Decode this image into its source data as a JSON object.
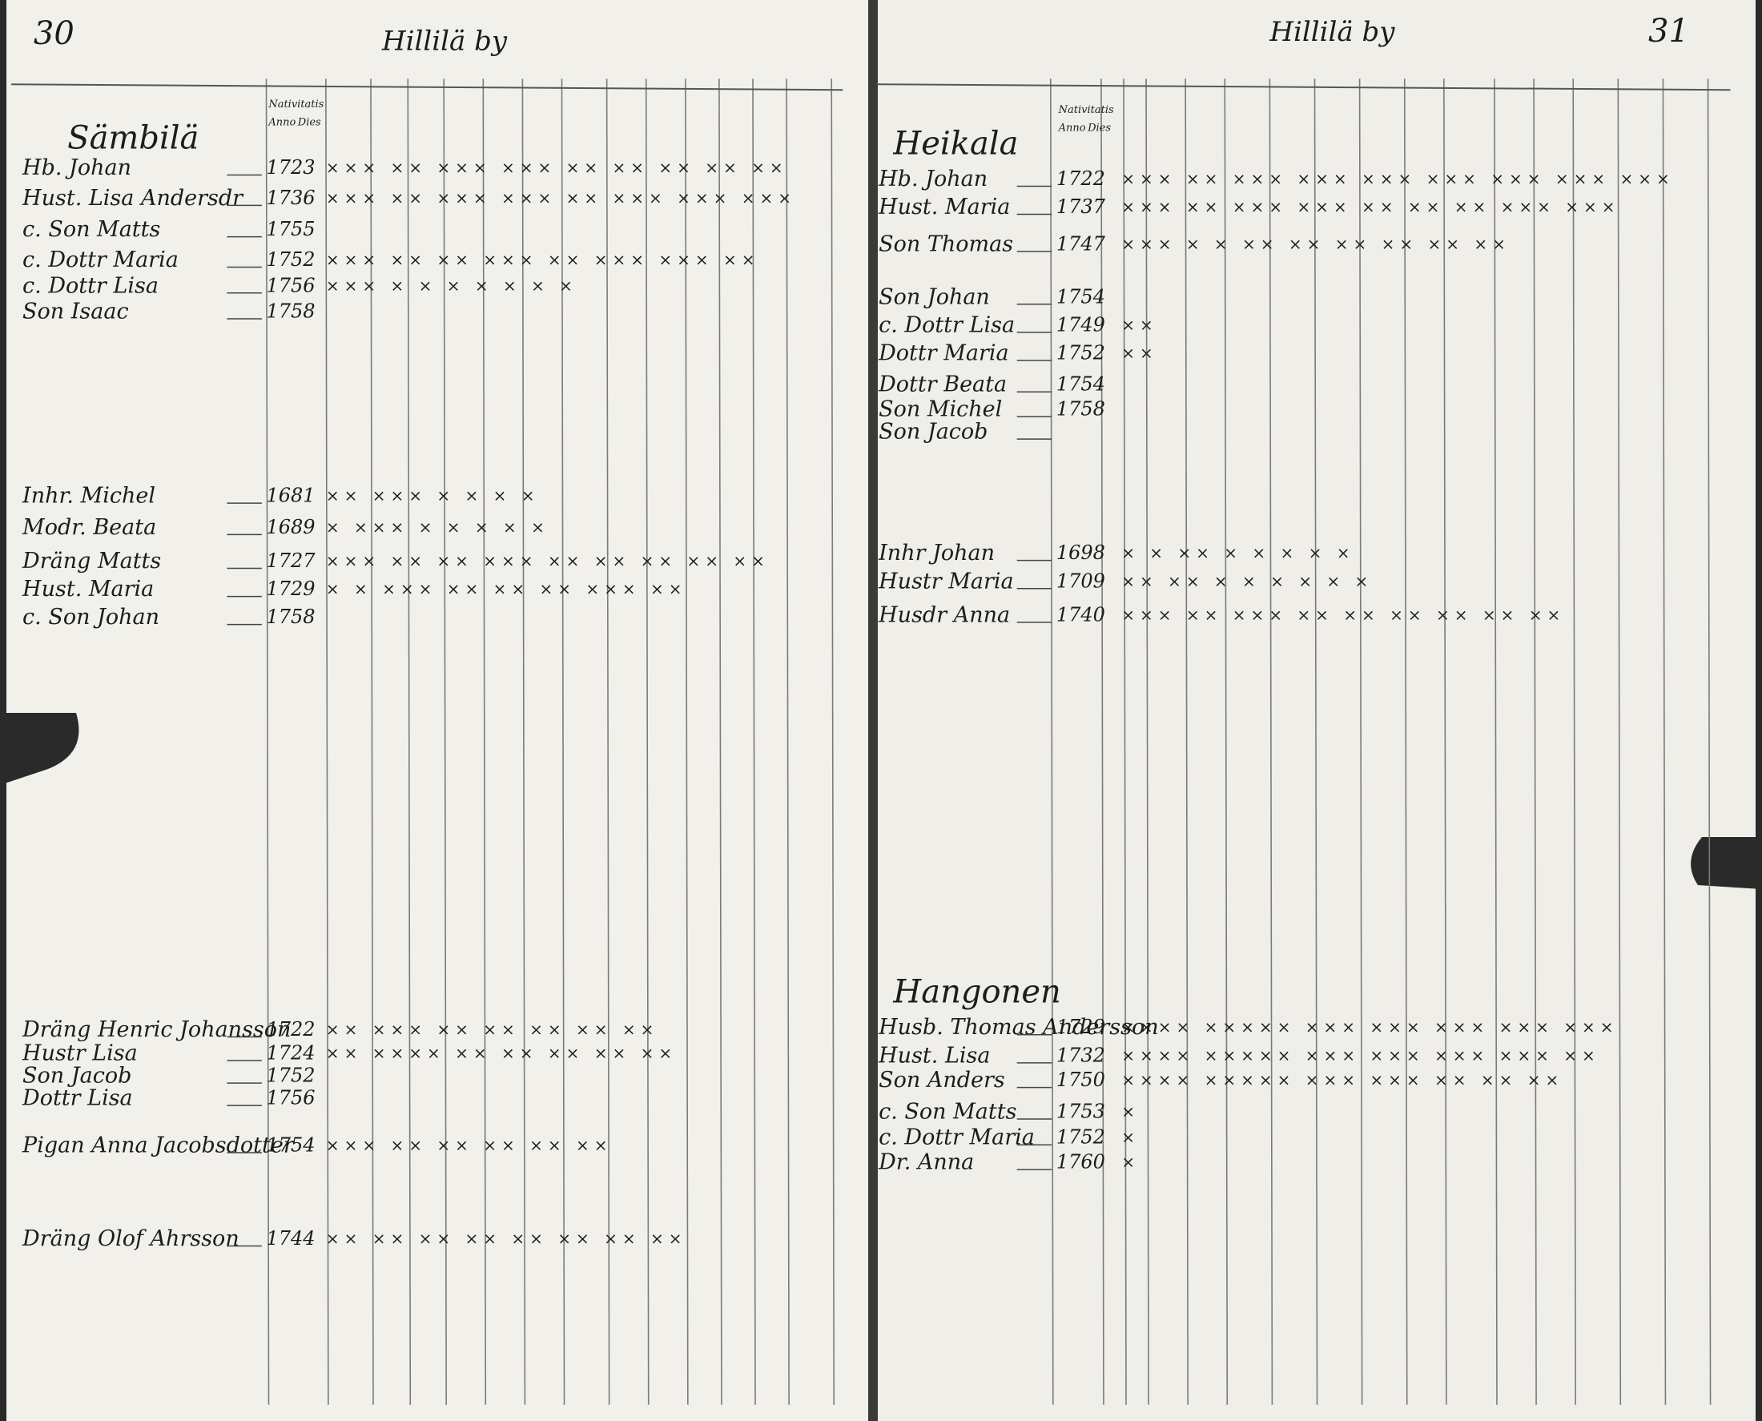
{
  "left_page": {
    "page_number": "30",
    "village": "Hillilä by",
    "column_headers": [
      "Nativitatis",
      "Anno",
      "Dies"
    ],
    "sections": [
      {
        "title": "Sämbilä",
        "rows": [
          {
            "name": "Hb. Johan",
            "year": "1723",
            "marks": "××× ×× ××× ××× ×× ×× ×× ×× ××"
          },
          {
            "name": "Hust. Lisa Andersdr",
            "year": "1736",
            "marks": "××× ×× ××× ××× ×× ××× ××× ×××"
          },
          {
            "name": "c. Son Matts",
            "year": "1755"
          },
          {
            "name": "c. Dottr Maria",
            "year": "1752",
            "marks": "××× ×× ×× ××× ×× ××× ××× ××"
          },
          {
            "name": "c. Dottr Lisa",
            "year": "1756",
            "marks": "××× × × × × × × ×"
          },
          {
            "name": "Son Isaac",
            "year": "1758"
          }
        ]
      },
      {
        "rows": [
          {
            "name": "Inhr. Michel",
            "year": "1681",
            "marks": "×× ××× × × × ×"
          },
          {
            "name": "Modr. Beata",
            "year": "1689",
            "marks": "× ××× × × × × ×"
          },
          {
            "name": "Dräng Matts",
            "year": "1727",
            "marks": "××× ×× ×× ××× ×× ×× ×× ×× ××"
          },
          {
            "name": "Hust. Maria",
            "year": "1729",
            "marks": "× × ××× ×× ×× ×× ××× ××"
          },
          {
            "name": "c. Son Johan",
            "year": "1758"
          }
        ]
      },
      {
        "rows": [
          {
            "name": "Dräng Henric Johansson",
            "year": "1722",
            "marks": "×× ××× ×× ×× ×× ×× ××"
          },
          {
            "name": "Hustr Lisa",
            "year": "1724",
            "marks": "×× ×××× ×× ×× ×× ×× ××"
          },
          {
            "name": "Son Jacob",
            "year": "1752"
          },
          {
            "name": "Dottr Lisa",
            "year": "1756"
          },
          {
            "name": "Pigan Anna Jacobsdotter",
            "year": "1754",
            "marks": "××× ×× ×× ×× ×× ××"
          },
          {
            "name": "Dräng Olof Ahrsson",
            "year": "1744",
            "marks": "×× ×× ×× ×× ×× ×× ×× ××"
          }
        ]
      }
    ]
  },
  "right_page": {
    "page_number": "31",
    "village": "Hillilä by",
    "column_headers": [
      "Nativitatis",
      "Anno",
      "Dies"
    ],
    "sections": [
      {
        "title": "Heikala",
        "rows": [
          {
            "name": "Hb. Johan",
            "year": "1722",
            "marks": "××× ×× ××× ××× ××× ××× ××× ××× ×××"
          },
          {
            "name": "Hust. Maria",
            "year": "1737",
            "marks": "××× ×× ××× ××× ×× ×× ×× ××× ×××"
          },
          {
            "name": "Son Thomas",
            "year": "1747",
            "marks": "××× × × ×× ×× ×× ×× ×× ××"
          },
          {
            "name": "Son Johan",
            "year": "1754"
          },
          {
            "name": "c. Dottr Lisa",
            "year": "1749",
            "marks": "××"
          },
          {
            "name": "Dottr Maria",
            "year": "1752",
            "marks": "××"
          },
          {
            "name": "Dottr Beata",
            "year": "1754"
          },
          {
            "name": "Son Michel",
            "year": "1758"
          },
          {
            "name": "Son Jacob"
          }
        ]
      },
      {
        "rows": [
          {
            "name": "Inhr Johan",
            "year": "1698",
            "marks": "× × ×× × × × × ×"
          },
          {
            "name": "Hustr Maria",
            "year": "1709",
            "marks": "×× ×× × × × × × ×"
          },
          {
            "name": "Husdr Anna",
            "year": "1740",
            "marks": "××× ×× ××× ×× ×× ×× ×× ×× ××"
          }
        ]
      },
      {
        "title": "Hangonen",
        "rows": [
          {
            "name": "Husb. Thomas Andersson",
            "year": "1729",
            "marks": "×××× ××××× ××× ××× ××× ××× ×××"
          },
          {
            "name": "Hust. Lisa",
            "year": "1732",
            "marks": "×××× ××××× ××× ××× ××× ××× ××"
          },
          {
            "name": "Son Anders",
            "year": "1750",
            "marks": "×××× ××××× ××× ××× ×× ×× ××"
          },
          {
            "name": "c. Son Matts",
            "year": "1753",
            "marks": "×"
          },
          {
            "name": "c. Dottr Maria",
            "year": "1752",
            "marks": "×"
          },
          {
            "name": "Dr. Anna",
            "year": "1760",
            "marks": "×"
          }
        ]
      }
    ]
  }
}
